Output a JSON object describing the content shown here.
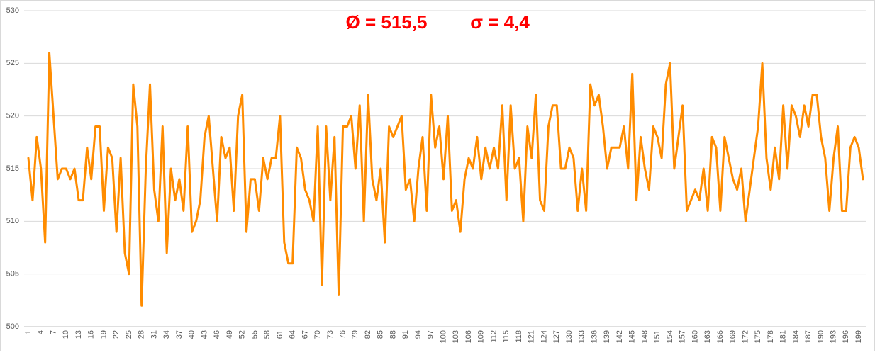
{
  "chart_data": {
    "type": "line",
    "annotations": [
      "Ø = 515,5",
      "σ = 4,4"
    ],
    "categories": [
      1,
      null,
      null,
      4,
      null,
      null,
      7,
      null,
      null,
      10,
      null,
      null,
      13,
      null,
      null,
      16,
      null,
      null,
      19,
      null,
      null,
      22,
      null,
      null,
      25,
      null,
      null,
      28,
      null,
      null,
      31,
      null,
      null,
      34,
      null,
      null,
      37,
      null,
      null,
      40,
      null,
      null,
      43,
      null,
      null,
      46,
      null,
      null,
      49,
      null,
      null,
      52,
      null,
      null,
      55,
      null,
      null,
      58,
      null,
      null,
      61,
      null,
      null,
      64,
      null,
      null,
      67,
      null,
      null,
      70,
      null,
      null,
      73,
      null,
      null,
      76,
      null,
      null,
      79,
      null,
      null,
      82,
      null,
      null,
      85,
      null,
      null,
      88,
      null,
      null,
      91,
      null,
      null,
      94,
      null,
      null,
      97,
      null,
      null,
      100,
      null,
      null,
      103,
      null,
      null,
      106,
      null,
      null,
      109,
      null,
      null,
      112,
      null,
      null,
      115,
      null,
      null,
      118,
      null,
      null,
      121,
      null,
      null,
      124,
      null,
      null,
      127,
      null,
      null,
      130,
      null,
      null,
      133,
      null,
      null,
      136,
      null,
      null,
      139,
      null,
      null,
      142,
      null,
      null,
      145,
      null,
      null,
      148,
      null,
      null,
      151,
      null,
      null,
      154,
      null,
      null,
      157,
      null,
      null,
      160,
      null,
      null,
      163,
      null,
      null,
      166,
      null,
      null,
      169,
      null,
      null,
      172,
      null,
      null,
      175,
      null,
      null,
      178,
      null,
      null,
      181,
      null,
      null,
      184,
      null,
      null,
      187,
      null,
      null,
      190,
      null,
      null,
      193,
      null,
      null,
      196,
      null,
      null,
      199,
      null
    ],
    "values": [
      516,
      512,
      518,
      515,
      508,
      526,
      520,
      514,
      515,
      515,
      514,
      515,
      512,
      512,
      517,
      514,
      519,
      519,
      511,
      517,
      516,
      509,
      516,
      507,
      505,
      523,
      519,
      502,
      515,
      523,
      513,
      510,
      519,
      507,
      515,
      512,
      514,
      511,
      519,
      509,
      510,
      512,
      518,
      520,
      515,
      510,
      518,
      516,
      517,
      511,
      520,
      522,
      509,
      514,
      514,
      511,
      516,
      514,
      516,
      516,
      520,
      508,
      506,
      506,
      517,
      516,
      513,
      512,
      510,
      519,
      504,
      519,
      512,
      518,
      503,
      519,
      519,
      520,
      515,
      521,
      510,
      522,
      514,
      512,
      515,
      508,
      519,
      518,
      519,
      520,
      513,
      514,
      510,
      515,
      518,
      511,
      522,
      517,
      519,
      514,
      520,
      511,
      512,
      509,
      514,
      516,
      515,
      518,
      514,
      517,
      515,
      517,
      515,
      521,
      512,
      521,
      515,
      516,
      510,
      519,
      516,
      522,
      512,
      511,
      519,
      521,
      521,
      515,
      515,
      517,
      516,
      511,
      515,
      511,
      523,
      521,
      522,
      519,
      515,
      517,
      517,
      517,
      519,
      515,
      524,
      512,
      518,
      515,
      513,
      519,
      518,
      516,
      523,
      525,
      515,
      518,
      521,
      511,
      512,
      513,
      512,
      515,
      511,
      518,
      517,
      511,
      518,
      516,
      514,
      513,
      515,
      510,
      513,
      516,
      519,
      525,
      516,
      513,
      517,
      514,
      521,
      515,
      521,
      520,
      518,
      521,
      519,
      522,
      522,
      518,
      516,
      511,
      516,
      519,
      511,
      511,
      517,
      518,
      517,
      514
    ],
    "color": "#ff8c00",
    "ylim": [
      500,
      530
    ],
    "yticks": [
      500,
      505,
      510,
      515,
      520,
      525,
      530
    ],
    "grid": true
  }
}
